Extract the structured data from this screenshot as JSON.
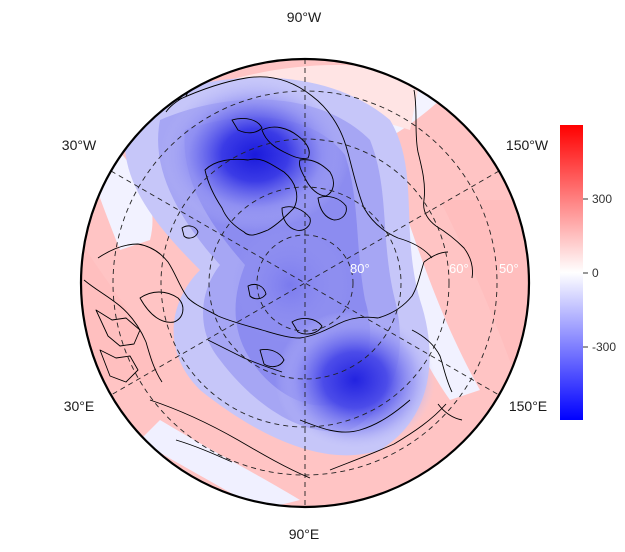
{
  "longitude_labels": {
    "top": "90°W",
    "bottom": "90°E",
    "upper_left": "30°W",
    "upper_right": "150°W",
    "lower_left": "30°E",
    "lower_right": "150°E"
  },
  "latitude_labels": [
    "80°",
    "60°",
    "50°"
  ],
  "colorbar": {
    "ticks": [
      "300",
      "0",
      "-300"
    ],
    "colors": {
      "high": "#ff0000",
      "mid": "#ffffff",
      "low": "#0000ff"
    }
  }
}
